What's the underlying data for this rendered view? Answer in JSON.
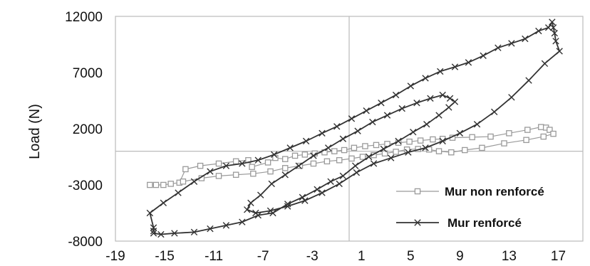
{
  "chart_data": {
    "type": "line",
    "title": "",
    "xlabel": "",
    "ylabel": "Load (N)",
    "xlim": [
      -19,
      19
    ],
    "ylim": [
      -8000,
      12000
    ],
    "x_ticks": [
      -19,
      -15,
      -11,
      -7,
      -3,
      1,
      5,
      9,
      13,
      17
    ],
    "y_ticks": [
      -8000,
      -3000,
      2000,
      7000,
      12000
    ],
    "grid": false,
    "zero_lines": true,
    "legend_position": "bottom-right",
    "series": [
      {
        "name": "Mur non renforcé",
        "marker": "square",
        "color": "#9a9a9a",
        "points": [
          [
            -16.2,
            -3000
          ],
          [
            -15.7,
            -3000
          ],
          [
            -15.1,
            -3000
          ],
          [
            -14.5,
            -2900
          ],
          [
            -13.8,
            -2800
          ],
          [
            -13.3,
            -1600
          ],
          [
            -12.1,
            -1300
          ],
          [
            -10.6,
            -1100
          ],
          [
            -9.2,
            -900
          ],
          [
            -8.2,
            -800
          ],
          [
            -7.9,
            -1400
          ],
          [
            -6.6,
            -1000
          ],
          [
            -6.0,
            -600
          ],
          [
            -5.2,
            -700
          ],
          [
            -4.4,
            -400
          ],
          [
            -3.6,
            -300
          ],
          [
            -2.8,
            -200
          ],
          [
            -2.0,
            -100
          ],
          [
            -1.2,
            0
          ],
          [
            -0.4,
            100
          ],
          [
            0.4,
            300
          ],
          [
            1.3,
            450
          ],
          [
            2.2,
            550
          ],
          [
            3.1,
            650
          ],
          [
            4.0,
            750
          ],
          [
            4.9,
            850
          ],
          [
            5.8,
            950
          ],
          [
            6.8,
            1050
          ],
          [
            7.6,
            1100
          ],
          [
            8.4,
            1200
          ],
          [
            10.0,
            1250
          ],
          [
            11.5,
            1300
          ],
          [
            13.0,
            1600
          ],
          [
            14.5,
            1900
          ],
          [
            15.6,
            2150
          ],
          [
            16.0,
            2100
          ],
          [
            16.3,
            1900
          ],
          [
            16.6,
            1550
          ],
          [
            15.8,
            1300
          ],
          [
            14.4,
            1000
          ],
          [
            12.6,
            700
          ],
          [
            10.8,
            300
          ],
          [
            9.4,
            100
          ],
          [
            8.3,
            -100
          ],
          [
            7.3,
            0
          ],
          [
            6.5,
            150
          ],
          [
            5.6,
            200
          ],
          [
            4.7,
            150
          ],
          [
            3.8,
            -50
          ],
          [
            2.9,
            -200
          ],
          [
            2.0,
            -350
          ],
          [
            1.1,
            -500
          ],
          [
            0.2,
            -650
          ],
          [
            -0.8,
            -800
          ],
          [
            -1.8,
            -900
          ],
          [
            -2.9,
            -1100
          ],
          [
            -4.0,
            -1300
          ],
          [
            -5.2,
            -1500
          ],
          [
            -6.4,
            -1800
          ],
          [
            -7.8,
            -2000
          ],
          [
            -9.2,
            -2100
          ],
          [
            -10.6,
            -2200
          ],
          [
            -12.0,
            -2400
          ],
          [
            -13.5,
            -2700
          ]
        ]
      },
      {
        "name": "Mur renforcé",
        "marker": "x",
        "color": "#333333",
        "points": [
          [
            -15.9,
            -7300
          ],
          [
            -15.3,
            -7400
          ],
          [
            -14.2,
            -7300
          ],
          [
            -12.6,
            -7200
          ],
          [
            -11.3,
            -6900
          ],
          [
            -10.0,
            -6600
          ],
          [
            -8.7,
            -6300
          ],
          [
            -7.4,
            -5700
          ],
          [
            -6.2,
            -5500
          ],
          [
            -5.0,
            -4700
          ],
          [
            -3.8,
            -4100
          ],
          [
            -2.6,
            -3400
          ],
          [
            -1.5,
            -2700
          ],
          [
            -0.5,
            -2200
          ],
          [
            0.5,
            -1300
          ],
          [
            1.6,
            -500
          ],
          [
            2.8,
            200
          ],
          [
            4.0,
            900
          ],
          [
            5.2,
            1700
          ],
          [
            6.3,
            2400
          ],
          [
            7.3,
            3200
          ],
          [
            8.1,
            3900
          ],
          [
            8.6,
            4400
          ],
          [
            8.2,
            4700
          ],
          [
            7.6,
            5000
          ],
          [
            6.6,
            4700
          ],
          [
            5.5,
            4300
          ],
          [
            4.3,
            3800
          ],
          [
            3.1,
            3200
          ],
          [
            1.9,
            2600
          ],
          [
            0.7,
            1800
          ],
          [
            -0.5,
            1100
          ],
          [
            -1.7,
            300
          ],
          [
            -2.9,
            -400
          ],
          [
            -4.1,
            -1300
          ],
          [
            -5.2,
            -2100
          ],
          [
            -6.3,
            -2900
          ],
          [
            -7.2,
            -3900
          ],
          [
            -8.0,
            -4600
          ],
          [
            -8.3,
            -5200
          ],
          [
            -7.6,
            -5500
          ],
          [
            -6.4,
            -5300
          ],
          [
            -5.0,
            -4900
          ],
          [
            -3.6,
            -4400
          ],
          [
            -2.2,
            -3700
          ],
          [
            -0.8,
            -2900
          ],
          [
            0.6,
            -1900
          ],
          [
            2.0,
            -1100
          ],
          [
            3.4,
            -600
          ],
          [
            4.8,
            -100
          ],
          [
            6.2,
            300
          ],
          [
            7.6,
            900
          ],
          [
            9.0,
            1600
          ],
          [
            10.4,
            2400
          ],
          [
            11.8,
            3500
          ],
          [
            13.2,
            4800
          ],
          [
            14.6,
            6300
          ],
          [
            15.9,
            7800
          ],
          [
            17.1,
            8900
          ],
          [
            16.8,
            9800
          ],
          [
            16.7,
            10500
          ],
          [
            16.6,
            11000
          ],
          [
            16.5,
            11500
          ],
          [
            16.2,
            11000
          ],
          [
            15.4,
            10700
          ],
          [
            14.3,
            10000
          ],
          [
            13.2,
            9600
          ],
          [
            12.1,
            9200
          ],
          [
            10.9,
            8500
          ],
          [
            9.7,
            7900
          ],
          [
            8.6,
            7500
          ],
          [
            7.4,
            7100
          ],
          [
            6.2,
            6500
          ],
          [
            5.0,
            5800
          ],
          [
            3.8,
            5000
          ],
          [
            2.6,
            4300
          ],
          [
            1.4,
            3600
          ],
          [
            0.2,
            2900
          ],
          [
            -1.0,
            2200
          ],
          [
            -2.2,
            1600
          ],
          [
            -3.5,
            900
          ],
          [
            -4.8,
            300
          ],
          [
            -6.1,
            -300
          ],
          [
            -7.4,
            -800
          ],
          [
            -8.7,
            -1100
          ],
          [
            -10.0,
            -1300
          ],
          [
            -11.3,
            -1800
          ],
          [
            -12.6,
            -2700
          ],
          [
            -13.9,
            -3700
          ],
          [
            -15.1,
            -4600
          ],
          [
            -16.2,
            -5500
          ],
          [
            -15.9,
            -6800
          ],
          [
            -15.9,
            -7100
          ]
        ]
      }
    ]
  }
}
